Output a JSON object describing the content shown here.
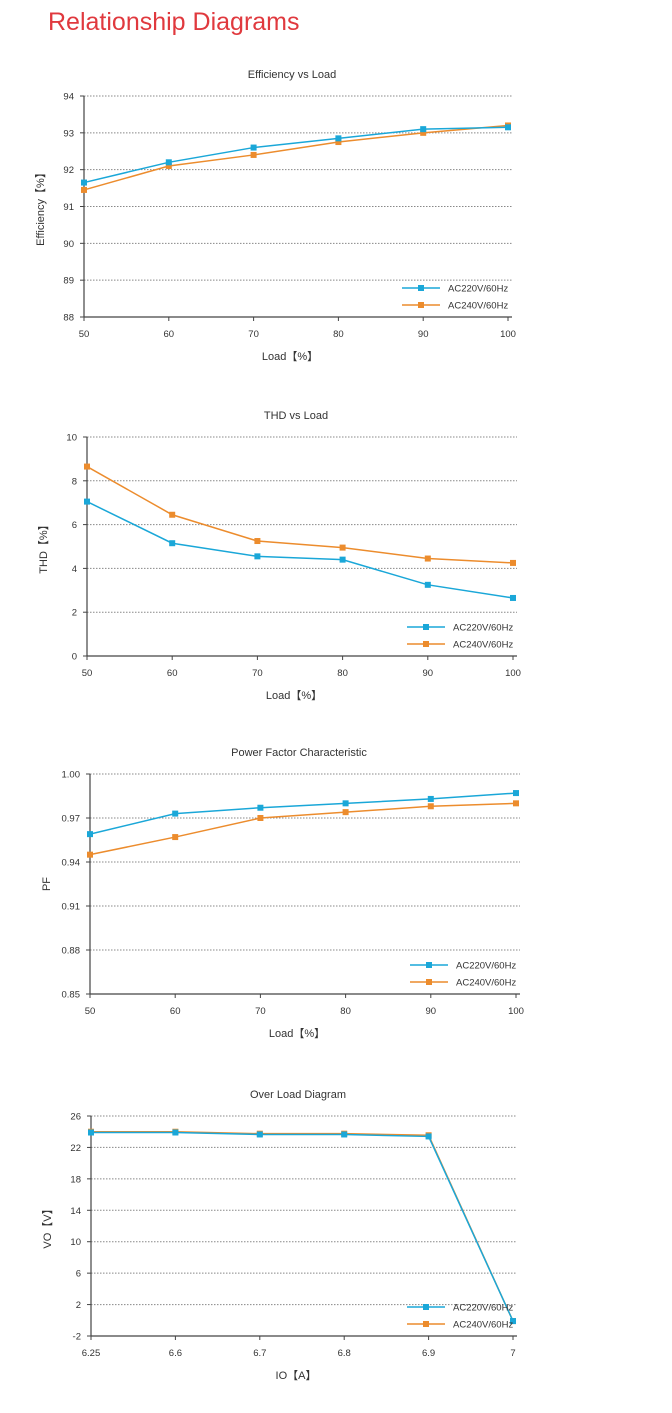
{
  "page": {
    "title": "Relationship Diagrams"
  },
  "colors": {
    "series1": "#1aa7d8",
    "series2": "#ec8c2d",
    "title": "#e0393e",
    "axis": "#444444",
    "grid": "#888888",
    "overlap": "#5a9a8a"
  },
  "chart_data": [
    {
      "type": "line",
      "title": "Efficiency vs Load",
      "xlabel": "Load【%】",
      "ylabel": "Efficiency【%】",
      "categories": [
        "50",
        "60",
        "70",
        "80",
        "90",
        "100"
      ],
      "x": [
        50,
        60,
        70,
        80,
        90,
        100
      ],
      "xlim": [
        50,
        100
      ],
      "ylim": [
        88,
        94
      ],
      "yticks": [
        "88",
        "89",
        "90",
        "91",
        "92",
        "93",
        "94"
      ],
      "grid": true,
      "legend": "bottom-right",
      "series": [
        {
          "name": "AC220V/60Hz",
          "values": [
            91.65,
            92.2,
            92.6,
            92.85,
            93.1,
            93.15
          ]
        },
        {
          "name": "AC240V/60Hz",
          "values": [
            91.45,
            92.1,
            92.4,
            92.75,
            93.0,
            93.2
          ]
        }
      ]
    },
    {
      "type": "line",
      "title": "THD vs Load",
      "xlabel": "Load【%】",
      "ylabel": "THD【%】",
      "categories": [
        "50",
        "60",
        "70",
        "80",
        "90",
        "100"
      ],
      "x": [
        50,
        60,
        70,
        80,
        90,
        100
      ],
      "xlim": [
        50,
        100
      ],
      "ylim": [
        0,
        10
      ],
      "yticks": [
        "0",
        "2",
        "4",
        "6",
        "8",
        "10"
      ],
      "grid": true,
      "legend": "bottom-right",
      "series": [
        {
          "name": "AC220V/60Hz",
          "values": [
            7.05,
            5.15,
            4.55,
            4.4,
            3.25,
            2.65
          ]
        },
        {
          "name": "AC240V/60Hz",
          "values": [
            8.65,
            6.45,
            5.25,
            4.95,
            4.45,
            4.25
          ]
        }
      ]
    },
    {
      "type": "line",
      "title": "Power Factor Characteristic",
      "xlabel": "Load【%】",
      "ylabel": "PF",
      "categories": [
        "50",
        "60",
        "70",
        "80",
        "90",
        "100"
      ],
      "x": [
        50,
        60,
        70,
        80,
        90,
        100
      ],
      "xlim": [
        50,
        100
      ],
      "ylim": [
        0.85,
        1.0
      ],
      "yticks": [
        "0.85",
        "0.88",
        "0.91",
        "0.94",
        "0.97",
        "1.00"
      ],
      "grid": true,
      "legend": "bottom-right",
      "series": [
        {
          "name": "AC220V/60Hz",
          "values": [
            0.959,
            0.973,
            0.977,
            0.98,
            0.983,
            0.987
          ]
        },
        {
          "name": "AC240V/60Hz",
          "values": [
            0.945,
            0.957,
            0.97,
            0.974,
            0.978,
            0.98
          ]
        }
      ]
    },
    {
      "type": "line",
      "title": "Over Load Diagram",
      "xlabel": "IO【A】",
      "ylabel": "VO【V】",
      "categories": [
        "6.25",
        "6.6",
        "6.7",
        "6.8",
        "6.9",
        "7"
      ],
      "x": [
        0,
        1,
        2,
        3,
        4,
        5
      ],
      "xlim": [
        0,
        5
      ],
      "ylim": [
        -2,
        26
      ],
      "yticks": [
        "-2",
        "2",
        "6",
        "10",
        "14",
        "18",
        "22",
        "26"
      ],
      "grid": true,
      "legend": "bottom-right",
      "series": [
        {
          "name": "AC220V/60Hz",
          "values": [
            23.9,
            23.9,
            23.65,
            23.65,
            23.4,
            -0.1
          ]
        },
        {
          "name": "AC240V/60Hz",
          "values": [
            24.0,
            24.0,
            23.75,
            23.75,
            23.55,
            -0.1
          ]
        }
      ]
    }
  ]
}
